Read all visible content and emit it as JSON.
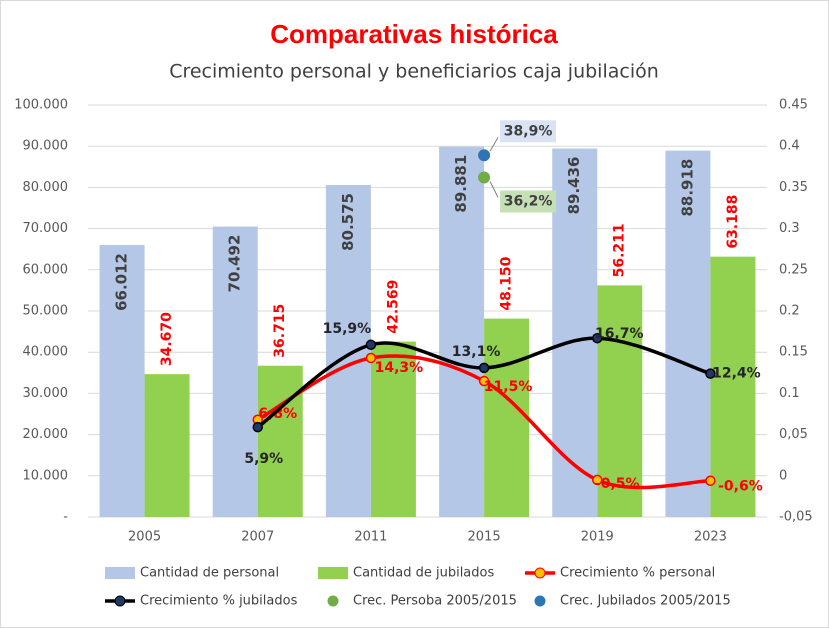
{
  "chart_data": {
    "type": "bar",
    "title": "Comparativas histórica",
    "subtitle": "Crecimiento personal y beneficiarios caja jubilación",
    "categories": [
      "2005",
      "2007",
      "2011",
      "2015",
      "2019",
      "2023"
    ],
    "ylim": [
      0,
      100000
    ],
    "yticks": [
      {
        "value": 0,
        "label": "-"
      },
      {
        "value": 10000,
        "label": "10.000"
      },
      {
        "value": 20000,
        "label": "20.000"
      },
      {
        "value": 30000,
        "label": "30.000"
      },
      {
        "value": 40000,
        "label": "40.000"
      },
      {
        "value": 50000,
        "label": "50.000"
      },
      {
        "value": 60000,
        "label": "60.000"
      },
      {
        "value": 70000,
        "label": "70.000"
      },
      {
        "value": 80000,
        "label": "80.000"
      },
      {
        "value": 90000,
        "label": "90.000"
      },
      {
        "value": 100000,
        "label": "100.000"
      }
    ],
    "y2lim": [
      -0.05,
      0.45
    ],
    "y2ticks": [
      {
        "value": -0.05,
        "label": "-0,05"
      },
      0,
      {
        "value": 0.05,
        "label": "0,05"
      },
      0.1,
      0.15,
      0.2,
      0.25,
      0.3,
      0.35,
      0.4,
      0.45
    ],
    "grid": true,
    "series": [
      {
        "name": "Cantidad de personal",
        "type": "bar",
        "color": "#b4c7e7",
        "values": [
          66012,
          70492,
          80575,
          89881,
          89436,
          88918
        ],
        "value_labels": [
          "66.012",
          "70.492",
          "80.575",
          "89.881",
          "89.436",
          "88.918"
        ]
      },
      {
        "name": "Cantidad de jubilados",
        "type": "bar",
        "color": "#92d050",
        "values": [
          34670,
          36715,
          42569,
          48150,
          56211,
          63188
        ],
        "value_labels": [
          "34.670",
          "36.715",
          "42.569",
          "48.150",
          "56.211",
          "63.188"
        ]
      },
      {
        "name": "Crecimiento % personal",
        "type": "line",
        "axis": "y2",
        "color": "#ff0000",
        "marker_color": "#ffc000",
        "values": [
          null,
          0.068,
          0.143,
          0.115,
          -0.005,
          -0.006
        ],
        "value_labels": [
          null,
          "6,8%",
          "14,3%",
          "11,5%",
          "-0,5%",
          "-0,6%"
        ]
      },
      {
        "name": "Crecimiento % jubilados",
        "type": "line",
        "axis": "y2",
        "color": "#000000",
        "marker_color": "#1f3864",
        "values": [
          null,
          0.059,
          0.159,
          0.131,
          0.167,
          0.124
        ],
        "value_labels": [
          null,
          "5,9%",
          "15,9%",
          "13,1%",
          "16,7%",
          "12,4%"
        ]
      },
      {
        "name": "Crec. Persoba 2005/2015",
        "type": "scatter",
        "axis": "y2",
        "color": "#70ad47",
        "label_bg": "#c5e0b4",
        "values": [
          null,
          null,
          null,
          0.362,
          null,
          null
        ],
        "value_labels": [
          null,
          null,
          null,
          "36,2%",
          null,
          null
        ]
      },
      {
        "name": "Crec. Jubilados 2005/2015",
        "type": "scatter",
        "axis": "y2",
        "color": "#2e75b6",
        "label_bg": "#dae3f3",
        "values": [
          null,
          null,
          null,
          0.389,
          null,
          null
        ],
        "value_labels": [
          null,
          null,
          null,
          "38,9%",
          null,
          null
        ]
      }
    ]
  }
}
